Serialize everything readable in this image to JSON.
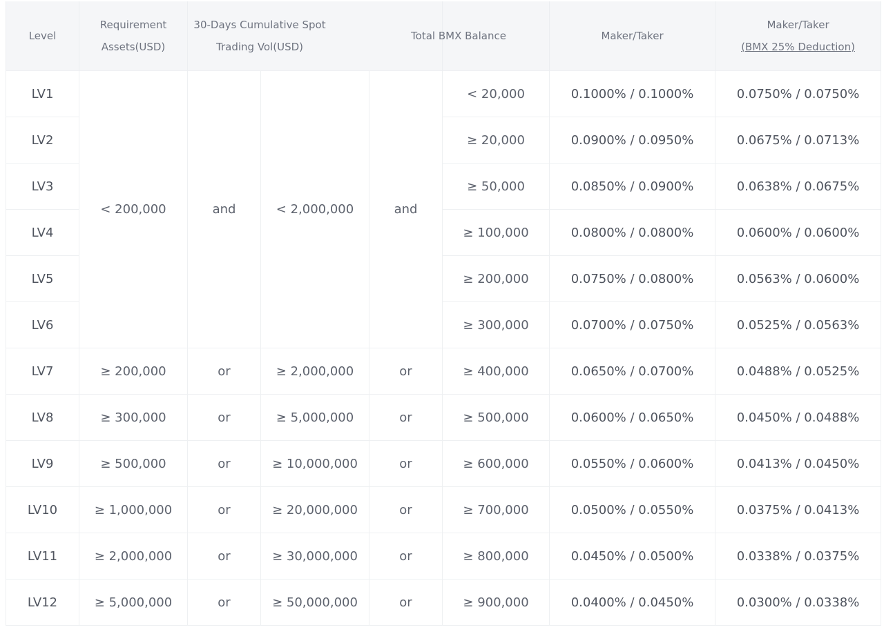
{
  "headers": {
    "level": "Level",
    "requirement_line1": "Requirement",
    "requirement_line2": "Assets(USD)",
    "volume_line1": "30-Days Cumulative Spot",
    "volume_line2": "Trading Vol(USD)",
    "balance": "Total BMX Balance",
    "maker_taker": "Maker/Taker",
    "maker_taker_deduction_line1": "Maker/Taker",
    "maker_taker_deduction_line2": "(BMX 25% Deduction)"
  },
  "base_tier": {
    "assets": "< 200,000",
    "connector1": "and",
    "volume": "< 2,000,000",
    "connector2": "and"
  },
  "rows": [
    {
      "level": "LV1",
      "balance": "< 20,000",
      "fee": "0.1000% / 0.1000%",
      "fee_deduction": "0.0750% / 0.0750%"
    },
    {
      "level": "LV2",
      "balance": "≥ 20,000",
      "fee": "0.0900% / 0.0950%",
      "fee_deduction": "0.0675% / 0.0713%"
    },
    {
      "level": "LV3",
      "balance": "≥ 50,000",
      "fee": "0.0850% / 0.0900%",
      "fee_deduction": "0.0638% / 0.0675%"
    },
    {
      "level": "LV4",
      "balance": "≥ 100,000",
      "fee": "0.0800% / 0.0800%",
      "fee_deduction": "0.0600% / 0.0600%"
    },
    {
      "level": "LV5",
      "balance": "≥ 200,000",
      "fee": "0.0750% / 0.0800%",
      "fee_deduction": "0.0563% / 0.0600%"
    },
    {
      "level": "LV6",
      "balance": "≥ 300,000",
      "fee": "0.0700% / 0.0750%",
      "fee_deduction": "0.0525% / 0.0563%"
    },
    {
      "level": "LV7",
      "assets": "≥ 200,000",
      "connector1": "or",
      "volume": "≥ 2,000,000",
      "connector2": "or",
      "balance": "≥ 400,000",
      "fee": "0.0650% / 0.0700%",
      "fee_deduction": "0.0488% / 0.0525%"
    },
    {
      "level": "LV8",
      "assets": "≥ 300,000",
      "connector1": "or",
      "volume": "≥ 5,000,000",
      "connector2": "or",
      "balance": "≥ 500,000",
      "fee": "0.0600% / 0.0650%",
      "fee_deduction": "0.0450% / 0.0488%"
    },
    {
      "level": "LV9",
      "assets": "≥ 500,000",
      "connector1": "or",
      "volume": "≥ 10,000,000",
      "connector2": "or",
      "balance": "≥ 600,000",
      "fee": "0.0550% / 0.0600%",
      "fee_deduction": "0.0413% / 0.0450%"
    },
    {
      "level": "LV10",
      "assets": "≥ 1,000,000",
      "connector1": "or",
      "volume": "≥ 20,000,000",
      "connector2": "or",
      "balance": "≥ 700,000",
      "fee": "0.0500% / 0.0550%",
      "fee_deduction": "0.0375% / 0.0413%"
    },
    {
      "level": "LV11",
      "assets": "≥ 2,000,000",
      "connector1": "or",
      "volume": "≥ 30,000,000",
      "connector2": "or",
      "balance": "≥ 800,000",
      "fee": "0.0450% / 0.0500%",
      "fee_deduction": "0.0338% / 0.0375%"
    },
    {
      "level": "LV12",
      "assets": "≥ 5,000,000",
      "connector1": "or",
      "volume": "≥ 50,000,000",
      "connector2": "or",
      "balance": "≥ 900,000",
      "fee": "0.0400% / 0.0450%",
      "fee_deduction": "0.0300% / 0.0338%"
    }
  ]
}
